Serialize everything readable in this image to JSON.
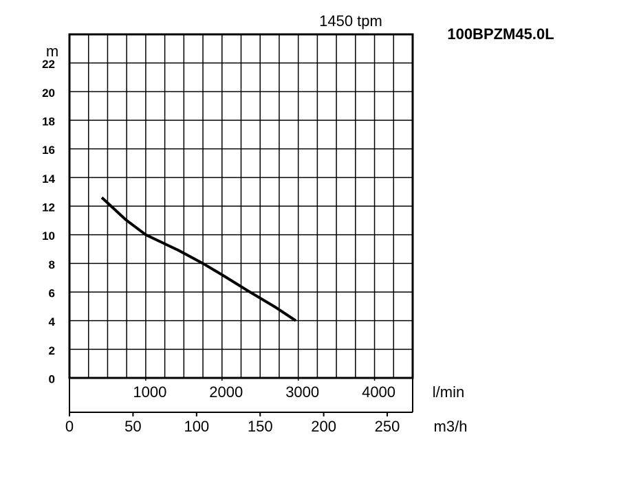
{
  "chart_data": {
    "type": "line",
    "title": "100BPZM45.0L",
    "subtitle": "1450 tpm",
    "y_label": "m",
    "x_label": "l/min",
    "x2_label": "m3/h",
    "xlim": [
      0,
      4500
    ],
    "xticks": [
      1000,
      2000,
      3000,
      4000
    ],
    "x_grid_step": 250,
    "x2lim": [
      0,
      270
    ],
    "x2ticks": [
      0,
      50,
      100,
      150,
      200,
      250
    ],
    "ylim": [
      0,
      24
    ],
    "yticks": [
      0,
      2,
      4,
      6,
      8,
      10,
      12,
      14,
      16,
      18,
      20,
      22
    ],
    "grid": true,
    "series": [
      {
        "color": "#000000",
        "x": [
          424,
          739,
          1001,
          1434,
          1749,
          2002,
          2336,
          2697,
          2967
        ],
        "values": [
          12.6,
          11.05,
          10.0,
          8.9,
          8.0,
          7.2,
          6.1,
          4.95,
          4.0
        ]
      }
    ]
  }
}
